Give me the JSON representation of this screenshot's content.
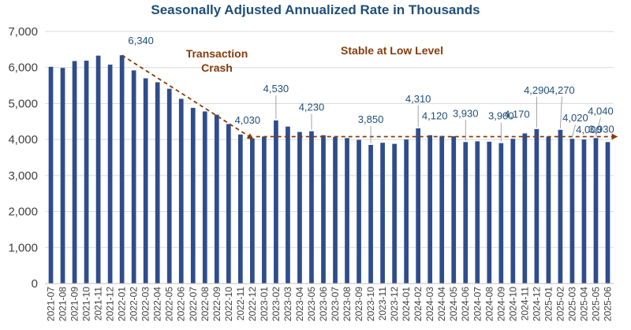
{
  "chart_data": {
    "type": "bar",
    "title": "Seasonally Adjusted Annualized Rate in Thousands",
    "xlabel": "",
    "ylabel": "",
    "ylim": [
      0,
      7000
    ],
    "yticks": [
      "0",
      "1,000",
      "2,000",
      "3,000",
      "4,000",
      "5,000",
      "6,000",
      "7,000"
    ],
    "grid": true,
    "categories": [
      "2021-07",
      "2021-08",
      "2021-09",
      "2021-10",
      "2021-11",
      "2021-12",
      "2022-01",
      "2022-02",
      "2022-03",
      "2022-04",
      "2022-05",
      "2022-06",
      "2022-07",
      "2022-08",
      "2022-09",
      "2022-10",
      "2022-11",
      "2022-12",
      "2023-01",
      "2023-02",
      "2023-03",
      "2023-04",
      "2023-05",
      "2023-06",
      "2023-07",
      "2023-08",
      "2023-09",
      "2023-10",
      "2023-11",
      "2023-12",
      "2024-01",
      "2024-02",
      "2024-03",
      "2024-04",
      "2024-05",
      "2024-06",
      "2024-07",
      "2024-08",
      "2024-09",
      "2024-10",
      "2024-11",
      "2024-12",
      "2025-01",
      "2025-02",
      "2025-03",
      "2025-04",
      "2025-05",
      "2025-06"
    ],
    "values": [
      6020,
      5990,
      6180,
      6190,
      6330,
      6080,
      6340,
      5920,
      5700,
      5590,
      5410,
      5130,
      4880,
      4780,
      4690,
      4430,
      4140,
      4030,
      4080,
      4530,
      4360,
      4210,
      4230,
      4120,
      4070,
      4040,
      3990,
      3850,
      3910,
      3880,
      4000,
      4310,
      4120,
      4100,
      4090,
      3930,
      3950,
      3940,
      3900,
      4020,
      4170,
      4290,
      4080,
      4270,
      4020,
      4000,
      4040,
      3930
    ],
    "data_labels": [
      {
        "index": 6,
        "text": "6,340"
      },
      {
        "index": 17,
        "text": "4,030"
      },
      {
        "index": 19,
        "text": "4,530"
      },
      {
        "index": 22,
        "text": "4,230"
      },
      {
        "index": 27,
        "text": "3,850"
      },
      {
        "index": 31,
        "text": "4,310"
      },
      {
        "index": 32,
        "text": "4,120"
      },
      {
        "index": 35,
        "text": "3,930"
      },
      {
        "index": 38,
        "text": "3,900"
      },
      {
        "index": 40,
        "text": "4,170"
      },
      {
        "index": 41,
        "text": "4,290"
      },
      {
        "index": 43,
        "text": "4,270"
      },
      {
        "index": 44,
        "text": "4,020"
      },
      {
        "index": 45,
        "text": "4,000"
      },
      {
        "index": 46,
        "text": "4,040"
      },
      {
        "index": 47,
        "text": "3,930"
      }
    ],
    "annotations": [
      {
        "lines": [
          "Transaction",
          "Crash"
        ]
      },
      {
        "lines": [
          "Stable at Low Level"
        ]
      }
    ],
    "trend_lines": [
      {
        "from": {
          "x": "2022-01",
          "y": 6340
        },
        "to": {
          "x": "2022-12",
          "y": 4030
        }
      },
      {
        "from": {
          "x": "2022-12",
          "y": 4080
        },
        "to": {
          "x": "2025-06",
          "y": 4080
        }
      }
    ],
    "colors": {
      "bars": "#2f4d8c",
      "trend": "#843c0c",
      "labels": "#1f4e79",
      "title": "#1f4e79"
    }
  }
}
